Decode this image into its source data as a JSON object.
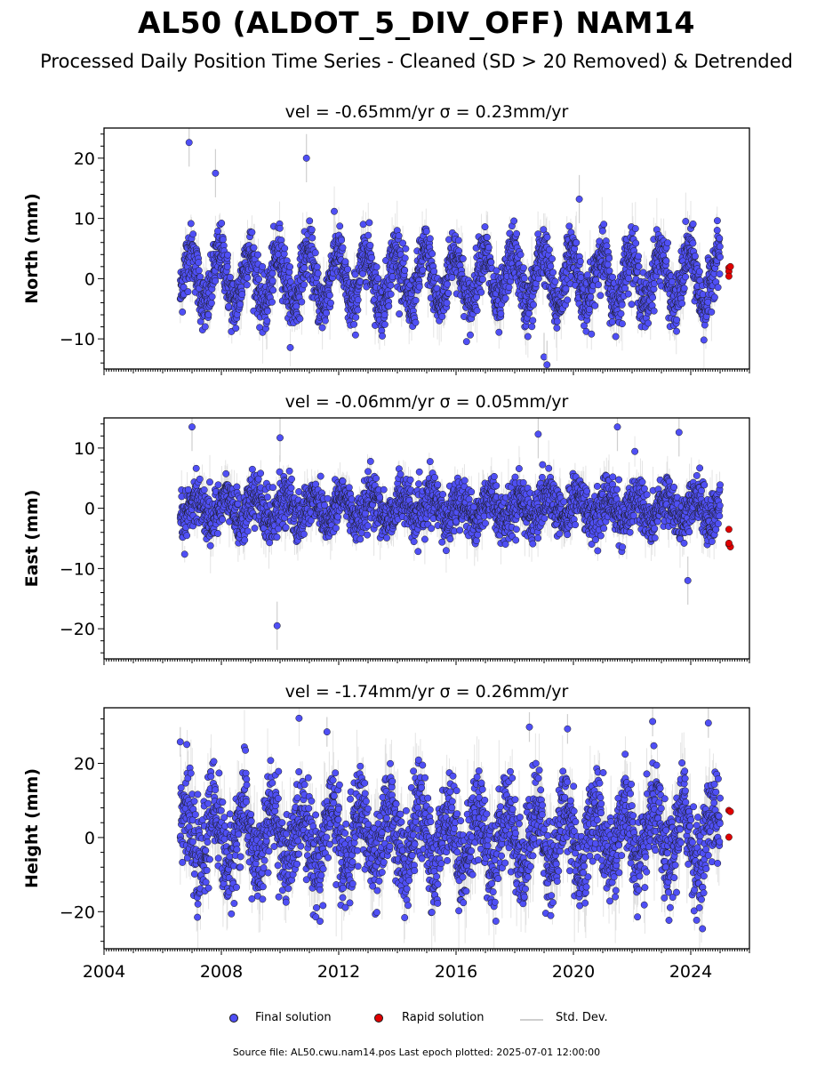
{
  "page": {
    "title": "AL50 (ALDOT_5_DIV_OFF) NAM14",
    "subtitle": "Processed Daily Position Time Series - Cleaned (SD > 20 Removed) & Detrended",
    "source": "Source file: AL50.cwu.nam14.pos  Last epoch plotted: 2025-07-01 12:00:00"
  },
  "legend": [
    {
      "label": "Final solution",
      "kind": "dot",
      "color": "#4f4ff5"
    },
    {
      "label": "Rapid solution",
      "kind": "dot",
      "color": "#e00000"
    },
    {
      "label": "Std. Dev.",
      "kind": "line",
      "color": "#cfcfcf"
    }
  ],
  "colors": {
    "final": "#4f4ff5",
    "rapid": "#e00000",
    "stddev": "#cfcfcf",
    "edge": "#1a1a1a"
  },
  "chart_data": [
    {
      "type": "scatter",
      "title": "vel = -0.65mm/yr   σ = 0.23mm/yr",
      "ylabel": "North (mm)",
      "xlim": [
        2004,
        2026
      ],
      "ylim": [
        -15,
        25
      ],
      "yticks": [
        -10,
        0,
        10,
        20
      ],
      "ytick_labels": [
        "−10",
        "0",
        "10",
        "20"
      ],
      "seasonal": {
        "amplitude": 4.5,
        "phase": 0.3,
        "noise_sd": 2.3
      },
      "series": [
        {
          "name": "Final solution",
          "x_range": [
            2006.6,
            2025.0
          ],
          "y": "daily values (seasonal + noise)"
        },
        {
          "name": "Rapid solution",
          "x": [
            2025.3,
            2025.3,
            2025.35,
            2025.3
          ],
          "y": [
            1.8,
            1.2,
            2.0,
            0.4
          ]
        }
      ],
      "outliers": {
        "x": [
          2006.9,
          2007.8,
          2010.9,
          2019.0,
          2019.1,
          2020.2
        ],
        "y": [
          22.6,
          17.5,
          20.0,
          -13.0,
          -14.3,
          13.2
        ]
      }
    },
    {
      "type": "scatter",
      "title": "vel = -0.06mm/yr   σ = 0.05mm/yr",
      "ylabel": "East (mm)",
      "xlim": [
        2004,
        2026
      ],
      "ylim": [
        -25,
        15
      ],
      "yticks": [
        -20,
        -10,
        0,
        10
      ],
      "ytick_labels": [
        "−20",
        "−10",
        "0",
        "10"
      ],
      "seasonal": {
        "amplitude": 2.0,
        "phase": 0.1,
        "noise_sd": 2.0
      },
      "series": [
        {
          "name": "Final solution",
          "x_range": [
            2006.6,
            2025.0
          ],
          "y": "daily values (seasonal + noise)"
        },
        {
          "name": "Rapid solution",
          "x": [
            2025.3,
            2025.3,
            2025.35,
            2025.3
          ],
          "y": [
            -3.5,
            -6.0,
            -6.4,
            -5.8
          ]
        }
      ],
      "outliers": {
        "x": [
          2007.0,
          2010.0,
          2009.9,
          2018.8,
          2021.5,
          2023.6,
          2023.9
        ],
        "y": [
          13.5,
          11.7,
          -19.5,
          12.3,
          13.5,
          12.6,
          -12.0
        ]
      }
    },
    {
      "type": "scatter",
      "title": "vel = -1.74mm/yr   σ = 0.26mm/yr",
      "ylabel": "Height (mm)",
      "xlim": [
        2004,
        2026
      ],
      "ylim": [
        -30,
        35
      ],
      "yticks": [
        -20,
        0,
        20
      ],
      "ytick_labels": [
        "−20",
        "0",
        "20"
      ],
      "xticks": [
        2004,
        2008,
        2012,
        2016,
        2020,
        2024
      ],
      "xtick_labels": [
        "2004",
        "2008",
        "2012",
        "2016",
        "2020",
        "2024"
      ],
      "seasonal": {
        "amplitude": 8.0,
        "phase": 0.5,
        "noise_sd": 6.0
      },
      "series": [
        {
          "name": "Final solution",
          "x_range": [
            2006.6,
            2025.0
          ],
          "y": "daily values (seasonal + noise)"
        },
        {
          "name": "Rapid solution",
          "x": [
            2025.3,
            2025.35,
            2025.3
          ],
          "y": [
            7.3,
            7.0,
            0.1
          ]
        }
      ],
      "outliers": {
        "x": [
          2006.6,
          2011.6,
          2018.5,
          2019.8,
          2022.7,
          2024.6
        ],
        "y": [
          25.8,
          28.5,
          29.8,
          29.3,
          31.3,
          30.9
        ]
      }
    }
  ]
}
